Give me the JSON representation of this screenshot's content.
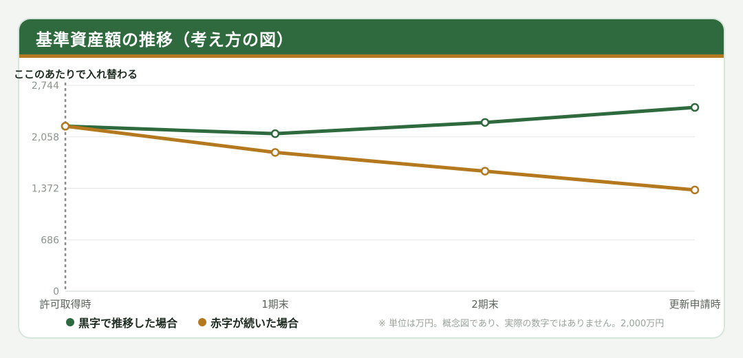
{
  "header": {
    "title": "基準資産額の推移（考え方の図）"
  },
  "chart_data": {
    "type": "line",
    "categories": [
      "許可取得時",
      "1期末",
      "2期末",
      "更新申請時"
    ],
    "series": [
      {
        "name": "黒字で推移した場合",
        "color": "#2e6a3d",
        "values": [
          2200,
          2100,
          2250,
          2450
        ]
      },
      {
        "name": "赤字が続いた場合",
        "color": "#b4791f",
        "values": [
          2200,
          1850,
          1600,
          1350
        ]
      }
    ],
    "ylim": [
      0,
      2744
    ],
    "yticks": [
      0,
      686,
      1372,
      2058,
      2744
    ],
    "ytick_labels": [
      "0",
      "686",
      "1,372",
      "2,058",
      "2,744"
    ],
    "grid": true,
    "legend": "bottom-left",
    "annotation": {
      "text": "ここのあたりで入れ替わる",
      "category_index": 0
    }
  },
  "footnote": "※ 単位は万円。概念図であり、実際の数字ではありません。2,000万円"
}
